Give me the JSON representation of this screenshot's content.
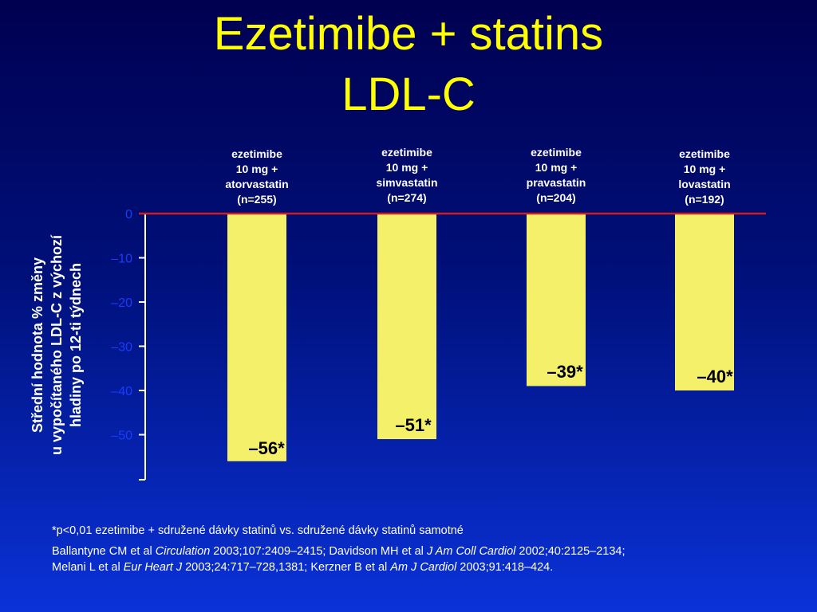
{
  "title_line1": "Ezetimibe + statins",
  "title_line2": "LDL-C",
  "ylabel": {
    "line1": "Střední hodnota % změny",
    "line2": "u vypočítaného LDL-C z výchozí",
    "line3": "hladiny po 12-ti týdnech"
  },
  "footnotes": {
    "significance": "*p<0,01 ezetimibe + sdružené dávky statinů vs. sdružené dávky statinů samotné",
    "refs_line1": [
      {
        "text": "Ballantyne CM et al ",
        "italic": false
      },
      {
        "text": "Circulation",
        "italic": true
      },
      {
        "text": " 2003;107:2409–2415; Davidson MH et al ",
        "italic": false
      },
      {
        "text": "J Am Coll Cardiol",
        "italic": true
      },
      {
        "text": " 2002;40:2125–2134;",
        "italic": false
      }
    ],
    "refs_line2": [
      {
        "text": "Melani L et al ",
        "italic": false
      },
      {
        "text": "Eur Heart J",
        "italic": true
      },
      {
        "text": " 2003;24:717–728,1381; Kerzner B et al ",
        "italic": false
      },
      {
        "text": "Am J Cardiol",
        "italic": true
      },
      {
        "text": " 2003;91:418–424.",
        "italic": false
      }
    ]
  },
  "chart_data": {
    "type": "bar",
    "categories": [
      [
        "ezetimibe",
        "10 mg +",
        "atorvastatin",
        "(n=255)"
      ],
      [
        "ezetimibe",
        "10 mg +",
        "simvastatin",
        "(n=274)"
      ],
      [
        "ezetimibe",
        "10 mg +",
        "pravastatin",
        "(n=204)"
      ],
      [
        "ezetimibe",
        "10 mg +",
        "lovastatin",
        "(n=192)"
      ]
    ],
    "values": [
      -56,
      -51,
      -39,
      -40
    ],
    "data_labels": [
      "–56*",
      "–51*",
      "–39*",
      "–40*"
    ],
    "ylim": [
      -60,
      0
    ],
    "yticks": [
      0,
      -10,
      -20,
      -30,
      -40,
      -50
    ],
    "ytick_labels": [
      "0",
      "–10",
      "–20",
      "–30",
      "–40",
      "–50"
    ],
    "colors": {
      "bar": "#f5f06a",
      "zero_line": "#cc1f1f",
      "axis": "#ffffff",
      "tick_label": "#1a3cff",
      "data_label": "#000000",
      "category_label": "#ffffff",
      "title": "#ffff00"
    }
  }
}
